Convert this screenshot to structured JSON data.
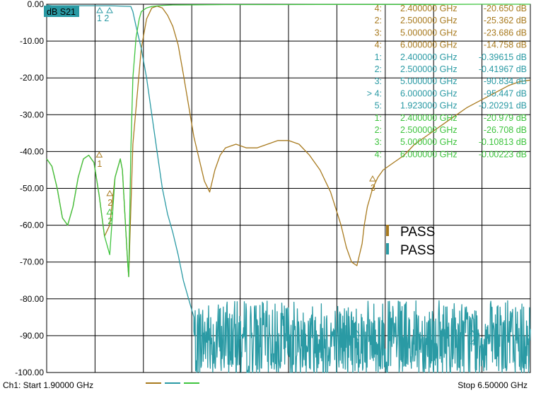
{
  "chart_data": {
    "type": "line",
    "trace_label": "dB S21",
    "x_start_ghz": 1.9,
    "x_stop_ghz": 6.5,
    "ylim": [
      -100,
      0
    ],
    "y_ticks": [
      "0.00",
      "-10.00",
      "-20.00",
      "-30.00",
      "-40.00",
      "-50.00",
      "-60.00",
      "-70.00",
      "-80.00",
      "-90.00",
      "-100.00"
    ],
    "footer_start": "Ch1: Start  1.90000 GHz",
    "footer_stop": "Stop  6.50000 GHz",
    "pass_labels": [
      "PASS",
      "PASS"
    ],
    "top_marker_labels": "1 2",
    "colors": {
      "brown": "#a87a1e",
      "teal": "#2a9aa4",
      "green": "#3ec43e",
      "grid": "#000000",
      "labelbox": "#2a9aa4"
    },
    "series": [
      {
        "color": "brown",
        "x": [
          1.9,
          1.95,
          2.0,
          2.05,
          2.1,
          2.15,
          2.2,
          2.25,
          2.3,
          2.35,
          2.4,
          2.45,
          2.5,
          2.55,
          2.6,
          2.62,
          2.65,
          2.67,
          2.68,
          2.72,
          2.8,
          2.85,
          2.9,
          2.95,
          3.0,
          3.05,
          3.1,
          3.15,
          3.2,
          3.3,
          3.4,
          3.45,
          3.5,
          3.55,
          3.6,
          3.65,
          3.7,
          3.8,
          3.9,
          4.0,
          4.1,
          4.2,
          4.3,
          4.4,
          4.5,
          4.6,
          4.7,
          4.75,
          4.8,
          4.85,
          4.9,
          4.92,
          4.95,
          5.0,
          5.05,
          5.1,
          5.2,
          5.3,
          5.4,
          5.5,
          5.6,
          5.7,
          5.8,
          5.9,
          6.0,
          6.1,
          6.2,
          6.3,
          6.4,
          6.5
        ],
        "y": [
          -42,
          -44,
          -50,
          -58,
          -60,
          -55,
          -47,
          -42,
          -41,
          -43,
          -52,
          -63,
          -60,
          -47,
          -42,
          -45,
          -60,
          -70,
          -74,
          -38,
          -12,
          -4,
          -1,
          -0.5,
          -1,
          -3,
          -6,
          -11,
          -19,
          -36,
          -48,
          -51,
          -45,
          -41,
          -39,
          -38.5,
          -38,
          -39,
          -39,
          -38,
          -37,
          -37,
          -38,
          -41,
          -45,
          -51,
          -60,
          -66,
          -70,
          -71,
          -65,
          -60,
          -55,
          -50,
          -47,
          -45,
          -43,
          -41,
          -38,
          -36,
          -34,
          -32,
          -30,
          -28,
          -26.5,
          -25,
          -23.5,
          -22,
          -21,
          -20.6
        ]
      },
      {
        "color": "teal",
        "x": [
          1.9,
          1.92,
          1.95,
          2.0,
          2.1,
          2.2,
          2.3,
          2.4,
          2.5,
          2.6,
          2.7,
          2.72,
          2.75,
          2.8,
          2.85,
          2.9,
          2.95,
          3.0,
          3.05,
          3.1,
          3.15,
          3.2,
          3.25,
          3.3
        ],
        "y": [
          -0.2,
          -0.3,
          -0.4,
          -0.4,
          -0.4,
          -0.4,
          -0.4,
          -0.4,
          -0.4,
          -0.5,
          -0.6,
          -2,
          -6,
          -12,
          -20,
          -30,
          -40,
          -50,
          -57,
          -62,
          -68,
          -75,
          -80,
          -85
        ],
        "noise": {
          "x_from": 3.3,
          "x_to": 6.5,
          "level": -90.8,
          "low": -100,
          "high": -80.5,
          "step": 0.004,
          "seed": 7
        }
      },
      {
        "color": "green",
        "x": [
          1.9,
          1.95,
          2.0,
          2.05,
          2.1,
          2.15,
          2.2,
          2.25,
          2.3,
          2.35,
          2.4,
          2.45,
          2.5,
          2.55,
          2.6,
          2.62,
          2.65,
          2.67,
          2.68,
          2.7,
          2.72,
          2.75,
          2.78,
          2.8,
          2.85,
          2.9,
          3.0,
          3.1,
          3.3,
          3.6,
          4.0,
          4.5,
          5.0,
          5.5,
          6.0,
          6.5
        ],
        "y": [
          -42,
          -44,
          -50,
          -58,
          -60,
          -55,
          -47,
          -42,
          -41,
          -43,
          -52,
          -63,
          -68,
          -47,
          -42,
          -45,
          -60,
          -70,
          -74,
          -40,
          -20,
          -9,
          -4,
          -2,
          -1,
          -0.6,
          -0.3,
          -0.2,
          -0.15,
          -0.1,
          -0.1,
          -0.05,
          -0.05,
          -0.05,
          0,
          0
        ]
      }
    ],
    "markers": [
      {
        "x": 2.4,
        "y": -41.5,
        "label": "1",
        "color": "brown"
      },
      {
        "x": 2.5,
        "y": -52,
        "label": "2",
        "color": "brown"
      },
      {
        "x": 5.0,
        "y": -48,
        "label": "3",
        "color": "brown"
      },
      {
        "x": 2.5,
        "y": -57,
        "label": "2",
        "color": "green"
      },
      {
        "x": 4.85,
        "y": -90,
        "label": "3",
        "color": "teal"
      },
      {
        "x": 5.95,
        "y": -90,
        "label": "4",
        "color": "teal"
      }
    ],
    "marker_table": [
      {
        "idx": "4:",
        "freq": "2.400000 GHz",
        "val": "-20.650 dB",
        "color": "brown"
      },
      {
        "idx": "2:",
        "freq": "2.500000 GHz",
        "val": "-25.362 dB",
        "color": "brown"
      },
      {
        "idx": "3:",
        "freq": "5.000000 GHz",
        "val": "-23.686 dB",
        "color": "brown"
      },
      {
        "idx": "4:",
        "freq": "6.000000 GHz",
        "val": "-14.758 dB",
        "color": "brown"
      },
      {
        "idx": "1:",
        "freq": "2.400000 GHz",
        "val": "-0.39615 dB",
        "color": "teal"
      },
      {
        "idx": "2:",
        "freq": "2.500000 GHz",
        "val": "-0.41967 dB",
        "color": "teal"
      },
      {
        "idx": "3:",
        "freq": "5.000000 GHz",
        "val": "-90.834 dB",
        "color": "teal"
      },
      {
        "idx": "> 4:",
        "freq": "6.000000 GHz",
        "val": "-95.447 dB",
        "color": "teal"
      },
      {
        "idx": "5:",
        "freq": "1.923000 GHz",
        "val": "-0.20291 dB",
        "color": "teal"
      },
      {
        "idx": "1:",
        "freq": "2.400000 GHz",
        "val": "-20.979 dB",
        "color": "green"
      },
      {
        "idx": "2:",
        "freq": "2.500000 GHz",
        "val": "-26.708 dB",
        "color": "green"
      },
      {
        "idx": "3:",
        "freq": "5.000000 GHz",
        "val": "-0.10813 dB",
        "color": "green"
      },
      {
        "idx": "4:",
        "freq": "6.000000 GHz",
        "val": "-0.00223 dB",
        "color": "green"
      }
    ]
  }
}
